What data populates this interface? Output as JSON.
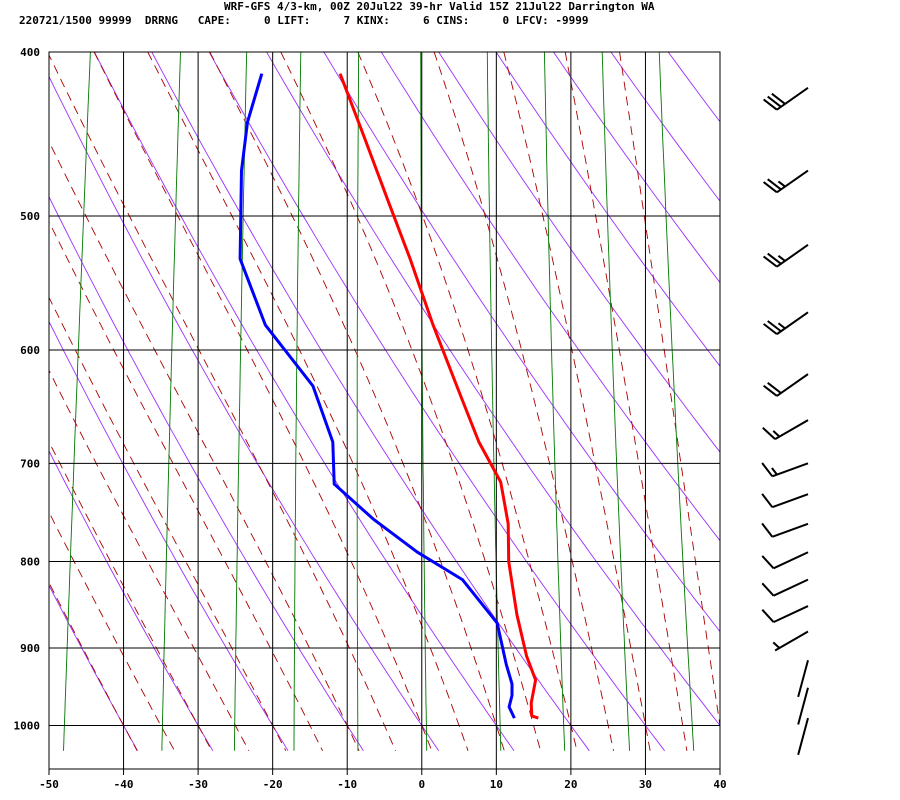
{
  "header": {
    "line1": "WRF-GFS 4/3-km, 00Z 20Jul22 39-hr Valid 15Z 21Jul22 Darrington WA",
    "line2": "220721/1500 99999  DRRNG   CAPE:     0 LIFT:     7 KINX:     6 CINS:     0 LFCV: -9999"
  },
  "chart_data": {
    "type": "line",
    "subtype": "skew-t log-p sounding",
    "title": "",
    "xlabel": "",
    "ylabel": "",
    "xlim": [
      -50,
      40
    ],
    "plim": [
      1035,
      400
    ],
    "x_ticks": [
      "-50",
      "-40",
      "-30",
      "-20",
      "-10",
      "0",
      "10",
      "20",
      "30",
      "40"
    ],
    "p_ticks": [
      "400",
      "500",
      "600",
      "700",
      "800",
      "900",
      "1000"
    ],
    "y_scale": "log",
    "grid": true,
    "colors": {
      "temperature": "#ff0000",
      "dewpoint": "#0000ff",
      "dry_adiabats": "#9b30ff",
      "moist_adiabats": "#aa0000",
      "mixing_ratio": "#007700",
      "wind_barbs": "#000000"
    },
    "series": [
      {
        "name": "temperature",
        "points": [
          {
            "p": 990,
            "t": 15.5
          },
          {
            "p": 987,
            "t": 14.6
          },
          {
            "p": 970,
            "t": 14.3
          },
          {
            "p": 940,
            "t": 14.5
          },
          {
            "p": 910,
            "t": 12.9
          },
          {
            "p": 860,
            "t": 10.9
          },
          {
            "p": 800,
            "t": 8.9
          },
          {
            "p": 760,
            "t": 8.2
          },
          {
            "p": 718,
            "t": 6.5
          },
          {
            "p": 680,
            "t": 2.9
          },
          {
            "p": 640,
            "t": -0.2
          },
          {
            "p": 580,
            "t": -5.2
          },
          {
            "p": 530,
            "t": -9.4
          },
          {
            "p": 490,
            "t": -13.3
          },
          {
            "p": 450,
            "t": -17.5
          },
          {
            "p": 412,
            "t": -21.9
          }
        ]
      },
      {
        "name": "dewpoint",
        "points": [
          {
            "p": 990,
            "t": 12.3
          },
          {
            "p": 975,
            "t": 11.4
          },
          {
            "p": 960,
            "t": 11.6
          },
          {
            "p": 945,
            "t": 11.4
          },
          {
            "p": 920,
            "t": 10.3
          },
          {
            "p": 870,
            "t": 8.4
          },
          {
            "p": 820,
            "t": 3.0
          },
          {
            "p": 790,
            "t": -3.5
          },
          {
            "p": 755,
            "t": -10.0
          },
          {
            "p": 720,
            "t": -15.8
          },
          {
            "p": 680,
            "t": -16.7
          },
          {
            "p": 630,
            "t": -20.3
          },
          {
            "p": 580,
            "t": -27.7
          },
          {
            "p": 530,
            "t": -32.2
          },
          {
            "p": 470,
            "t": -33.5
          },
          {
            "p": 440,
            "t": -33.5
          },
          {
            "p": 412,
            "t": -32.4
          }
        ]
      }
    ],
    "wind_barbs": [
      {
        "p": 990,
        "direction_deg": 195,
        "speed_kt": 0
      },
      {
        "p": 950,
        "direction_deg": 195,
        "speed_kt": 0
      },
      {
        "p": 915,
        "direction_deg": 195,
        "speed_kt": 0
      },
      {
        "p": 880,
        "direction_deg": 240,
        "speed_kt": 5
      },
      {
        "p": 850,
        "direction_deg": 245,
        "speed_kt": 10
      },
      {
        "p": 820,
        "direction_deg": 245,
        "speed_kt": 10
      },
      {
        "p": 790,
        "direction_deg": 245,
        "speed_kt": 10
      },
      {
        "p": 760,
        "direction_deg": 250,
        "speed_kt": 10
      },
      {
        "p": 730,
        "direction_deg": 250,
        "speed_kt": 10
      },
      {
        "p": 700,
        "direction_deg": 250,
        "speed_kt": 15
      },
      {
        "p": 660,
        "direction_deg": 240,
        "speed_kt": 15
      },
      {
        "p": 620,
        "direction_deg": 235,
        "speed_kt": 20
      },
      {
        "p": 570,
        "direction_deg": 235,
        "speed_kt": 25
      },
      {
        "p": 520,
        "direction_deg": 235,
        "speed_kt": 25
      },
      {
        "p": 470,
        "direction_deg": 235,
        "speed_kt": 25
      },
      {
        "p": 420,
        "direction_deg": 235,
        "speed_kt": 30
      }
    ]
  }
}
